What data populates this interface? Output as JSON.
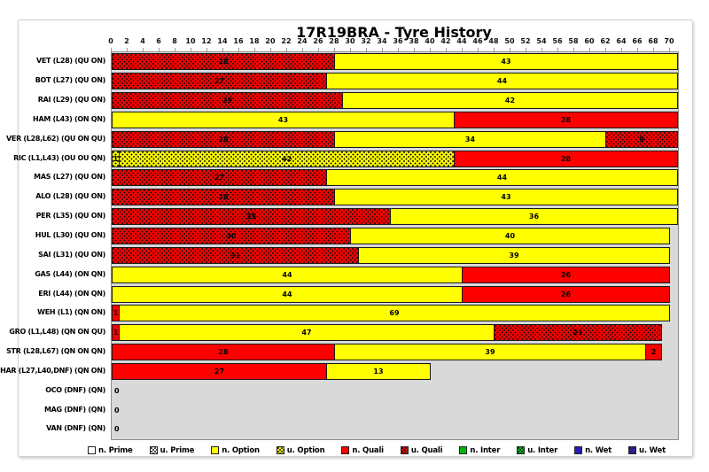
{
  "title": "17R19BRA - Tyre History",
  "chart_data": {
    "type": "bar",
    "orientation": "horizontal",
    "title": "17R19BRA - Tyre History",
    "x_axis": {
      "min": 0,
      "max": 70,
      "step": 2,
      "ticks": [
        0,
        2,
        4,
        6,
        8,
        10,
        12,
        14,
        16,
        18,
        20,
        22,
        24,
        26,
        28,
        30,
        32,
        34,
        36,
        38,
        40,
        42,
        44,
        46,
        48,
        50,
        52,
        54,
        56,
        58,
        60,
        62,
        64,
        66,
        68,
        70
      ]
    },
    "plot_background": "#d9d9d9",
    "rows": [
      {
        "label": "VET (L28) (QU ON)",
        "segments": [
          {
            "value": 28,
            "type": "u_quali"
          },
          {
            "value": 43,
            "type": "n_option"
          }
        ]
      },
      {
        "label": "BOT (L27) (QU ON)",
        "segments": [
          {
            "value": 27,
            "type": "u_quali"
          },
          {
            "value": 44,
            "type": "n_option"
          }
        ]
      },
      {
        "label": "RAI (L29) (QU ON)",
        "segments": [
          {
            "value": 29,
            "type": "u_quali"
          },
          {
            "value": 42,
            "type": "n_option"
          }
        ]
      },
      {
        "label": "HAM (L43) (ON QN)",
        "segments": [
          {
            "value": 43,
            "type": "n_option"
          },
          {
            "value": 28,
            "type": "n_quali"
          }
        ]
      },
      {
        "label": "VER (L28,L62) (QU ON QU)",
        "segments": [
          {
            "value": 28,
            "type": "u_quali"
          },
          {
            "value": 34,
            "type": "n_option"
          },
          {
            "value": 9,
            "type": "u_quali"
          }
        ]
      },
      {
        "label": "RIC (L1,L43) (OU OU QN)",
        "segments": [
          {
            "value": 1,
            "type": "u_option"
          },
          {
            "value": 42,
            "type": "u_option"
          },
          {
            "value": 28,
            "type": "n_quali"
          }
        ]
      },
      {
        "label": "MAS (L27) (QU ON)",
        "segments": [
          {
            "value": 27,
            "type": "u_quali"
          },
          {
            "value": 44,
            "type": "n_option"
          }
        ]
      },
      {
        "label": "ALO (L28) (QU ON)",
        "segments": [
          {
            "value": 28,
            "type": "u_quali"
          },
          {
            "value": 43,
            "type": "n_option"
          }
        ]
      },
      {
        "label": "PER (L35) (QU ON)",
        "segments": [
          {
            "value": 35,
            "type": "u_quali"
          },
          {
            "value": 36,
            "type": "n_option"
          }
        ]
      },
      {
        "label": "HUL (L30) (QU ON)",
        "segments": [
          {
            "value": 30,
            "type": "u_quali"
          },
          {
            "value": 40,
            "type": "n_option"
          }
        ]
      },
      {
        "label": "SAI (L31) (QU ON)",
        "segments": [
          {
            "value": 31,
            "type": "u_quali"
          },
          {
            "value": 39,
            "type": "n_option"
          }
        ]
      },
      {
        "label": "GAS (L44) (ON QN)",
        "segments": [
          {
            "value": 44,
            "type": "n_option"
          },
          {
            "value": 26,
            "type": "n_quali"
          }
        ]
      },
      {
        "label": "ERI (L44) (ON QN)",
        "segments": [
          {
            "value": 44,
            "type": "n_option"
          },
          {
            "value": 26,
            "type": "n_quali"
          }
        ]
      },
      {
        "label": "WEH (L1) (QN ON)",
        "segments": [
          {
            "value": 1,
            "type": "n_quali"
          },
          {
            "value": 69,
            "type": "n_option"
          }
        ]
      },
      {
        "label": "GRO (L1,L48) (QN ON QU)",
        "segments": [
          {
            "value": 1,
            "type": "n_quali"
          },
          {
            "value": 47,
            "type": "n_option"
          },
          {
            "value": 21,
            "type": "u_quali"
          }
        ]
      },
      {
        "label": "STR (L28,L67) (QN ON QN)",
        "segments": [
          {
            "value": 28,
            "type": "n_quali"
          },
          {
            "value": 39,
            "type": "n_option"
          },
          {
            "value": 2,
            "type": "n_quali"
          }
        ]
      },
      {
        "label": "HAR (L27,L40,DNF) (QN ON)",
        "segments": [
          {
            "value": 27,
            "type": "n_quali"
          },
          {
            "value": 13,
            "type": "n_option"
          }
        ]
      },
      {
        "label": "OCO (DNF) (QN)",
        "segments": [],
        "zero_label": "0"
      },
      {
        "label": "MAG (DNF) (QN)",
        "segments": [],
        "zero_label": "0"
      },
      {
        "label": "VAN (DNF) (QN)",
        "segments": [],
        "zero_label": "0"
      }
    ],
    "legend": [
      {
        "key": "n_prime",
        "label": "n. Prime",
        "color": "#FFFFFF",
        "dotted": false
      },
      {
        "key": "u_prime",
        "label": "u. Prime",
        "color": "#FFFFFF",
        "dotted": true
      },
      {
        "key": "n_option",
        "label": "n. Option",
        "color": "#FFFF00",
        "dotted": false
      },
      {
        "key": "u_option",
        "label": "u. Option",
        "color": "#FFFF00",
        "dotted": true
      },
      {
        "key": "n_quali",
        "label": "n. Quali",
        "color": "#FF0000",
        "dotted": false
      },
      {
        "key": "u_quali",
        "label": "u. Quali",
        "color": "#FF0000",
        "dotted": true
      },
      {
        "key": "n_inter",
        "label": "n. Inter",
        "color": "#00B50C",
        "dotted": false
      },
      {
        "key": "u_inter",
        "label": "u. Inter",
        "color": "#00C414",
        "dotted": true
      },
      {
        "key": "n_wet",
        "label": "n. Wet",
        "color": "#281CB0",
        "dotted": false
      },
      {
        "key": "u_wet",
        "label": "u. Wet",
        "color": "#3E2CD2",
        "dotted": true
      }
    ]
  }
}
